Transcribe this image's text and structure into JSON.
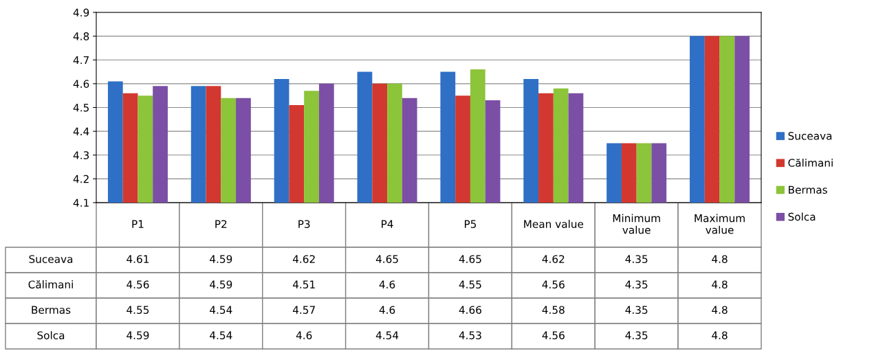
{
  "chart_data": {
    "type": "bar",
    "categories": [
      "P1",
      "P2",
      "P3",
      "P4",
      "P5",
      "Mean value",
      "Minimum value",
      "Maximum value"
    ],
    "series": [
      {
        "name": "Suceava",
        "color": "#2f6fc6",
        "values": [
          4.61,
          4.59,
          4.62,
          4.65,
          4.65,
          4.62,
          4.35,
          4.8
        ]
      },
      {
        "name": "Călimani",
        "color": "#d2382f",
        "values": [
          4.56,
          4.59,
          4.51,
          4.6,
          4.55,
          4.56,
          4.35,
          4.8
        ]
      },
      {
        "name": "Bermas",
        "color": "#8cc43a",
        "values": [
          4.55,
          4.54,
          4.57,
          4.6,
          4.66,
          4.58,
          4.35,
          4.8
        ]
      },
      {
        "name": "Solca",
        "color": "#7b4fa5",
        "values": [
          4.59,
          4.54,
          4.6,
          4.54,
          4.53,
          4.56,
          4.35,
          4.8
        ]
      }
    ],
    "ylim": [
      4.1,
      4.9
    ],
    "yticks": [
      4.1,
      4.2,
      4.3,
      4.4,
      4.5,
      4.6,
      4.7,
      4.8,
      4.9
    ],
    "grid": "y",
    "legend": "right",
    "data_labels": true
  }
}
